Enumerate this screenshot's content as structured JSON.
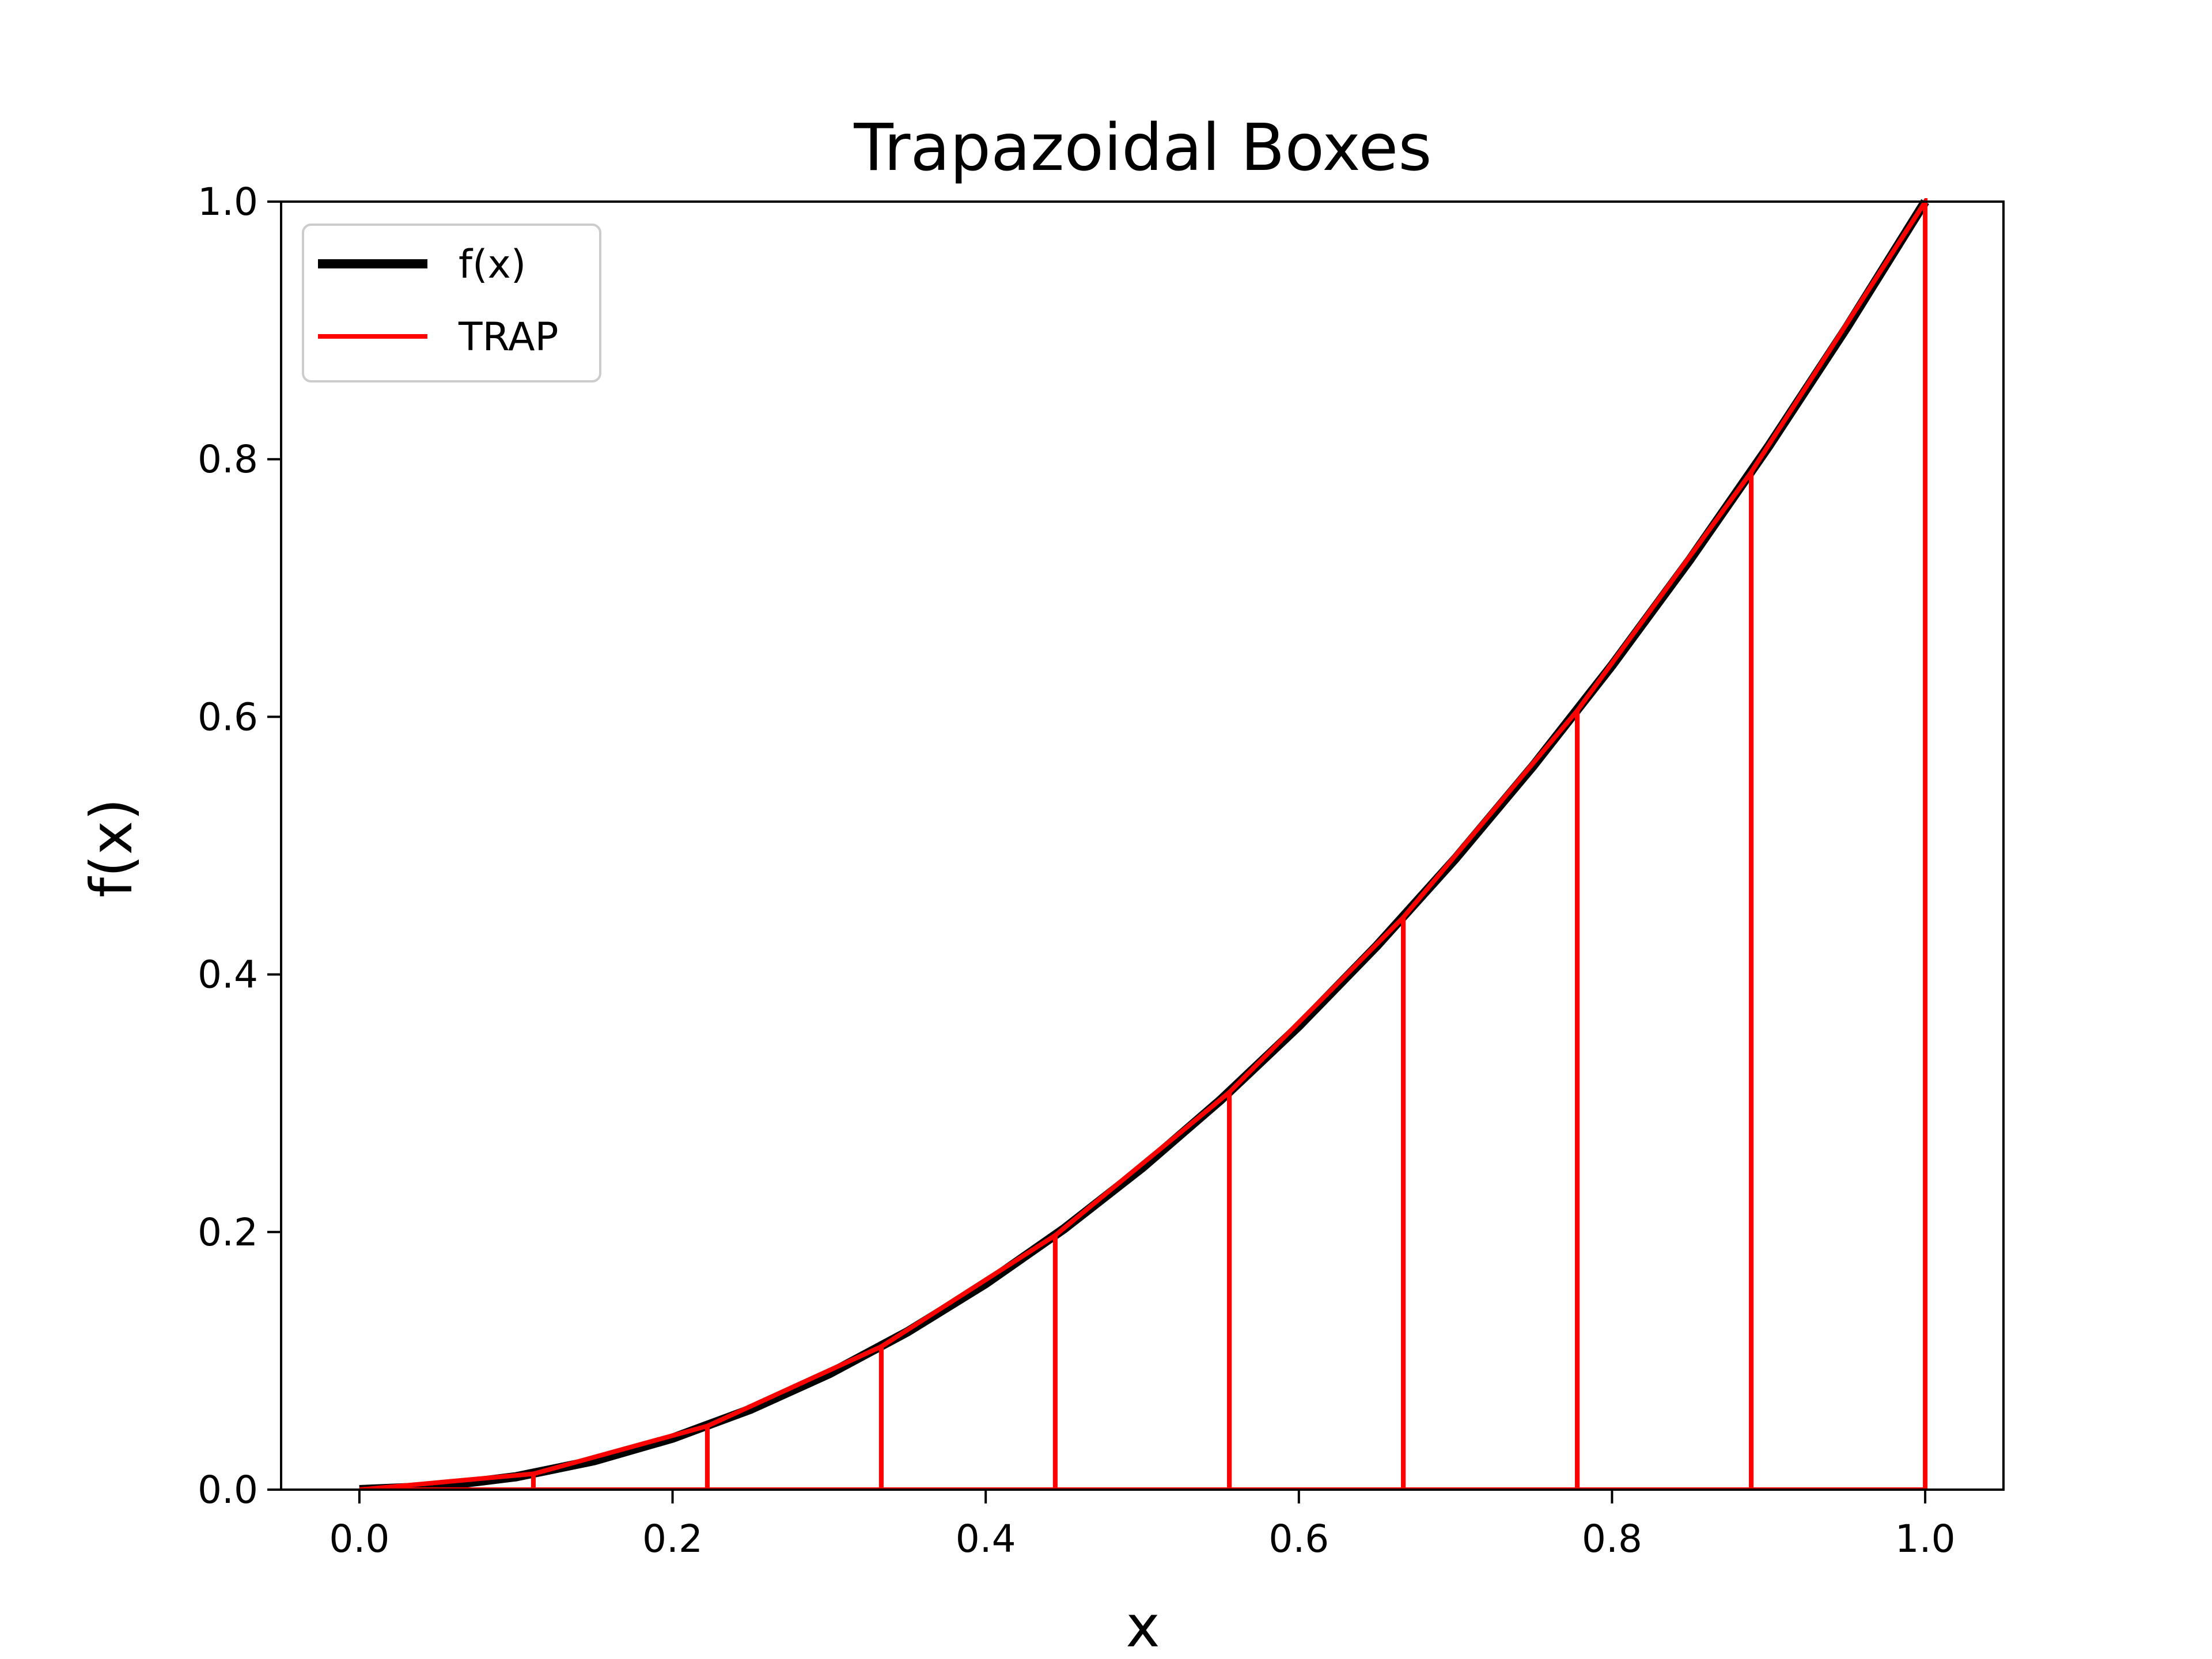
{
  "chart_data": {
    "type": "line",
    "title": "Trapazoidal Boxes",
    "xlabel": "x",
    "ylabel": "f(x)",
    "xlim": [
      -0.05,
      1.05
    ],
    "ylim": [
      0.0,
      1.0
    ],
    "xticks": [
      0.0,
      0.2,
      0.4,
      0.6,
      0.8,
      1.0
    ],
    "xtick_labels": [
      "0.0",
      "0.2",
      "0.4",
      "0.6",
      "0.8",
      "1.0"
    ],
    "yticks": [
      0.0,
      0.2,
      0.4,
      0.6,
      0.8,
      1.0
    ],
    "ytick_labels": [
      "0.0",
      "0.2",
      "0.4",
      "0.6",
      "0.8",
      "1.0"
    ],
    "grid": false,
    "legend_position": "top-left",
    "series": [
      {
        "name": "f(x)",
        "color": "#000000",
        "style": "thick-solid",
        "x": [
          0.0,
          0.05,
          0.1,
          0.15,
          0.2,
          0.25,
          0.3,
          0.35,
          0.4,
          0.45,
          0.5,
          0.55,
          0.6,
          0.65,
          0.7,
          0.75,
          0.8,
          0.85,
          0.9,
          0.95,
          1.0
        ],
        "y": [
          0.0,
          0.0025,
          0.01,
          0.0225,
          0.04,
          0.0625,
          0.09,
          0.1225,
          0.16,
          0.2025,
          0.25,
          0.3025,
          0.36,
          0.4225,
          0.49,
          0.5625,
          0.64,
          0.7225,
          0.81,
          0.9025,
          1.0
        ]
      },
      {
        "name": "TRAP",
        "color": "#ff0000",
        "style": "trapezoids",
        "x": [
          0.0,
          0.1111,
          0.2222,
          0.3333,
          0.4444,
          0.5556,
          0.6667,
          0.7778,
          0.8889,
          1.0
        ],
        "y": [
          0.0,
          0.0123,
          0.0494,
          0.1111,
          0.1975,
          0.3086,
          0.4444,
          0.6049,
          0.7901,
          1.0
        ]
      }
    ]
  }
}
